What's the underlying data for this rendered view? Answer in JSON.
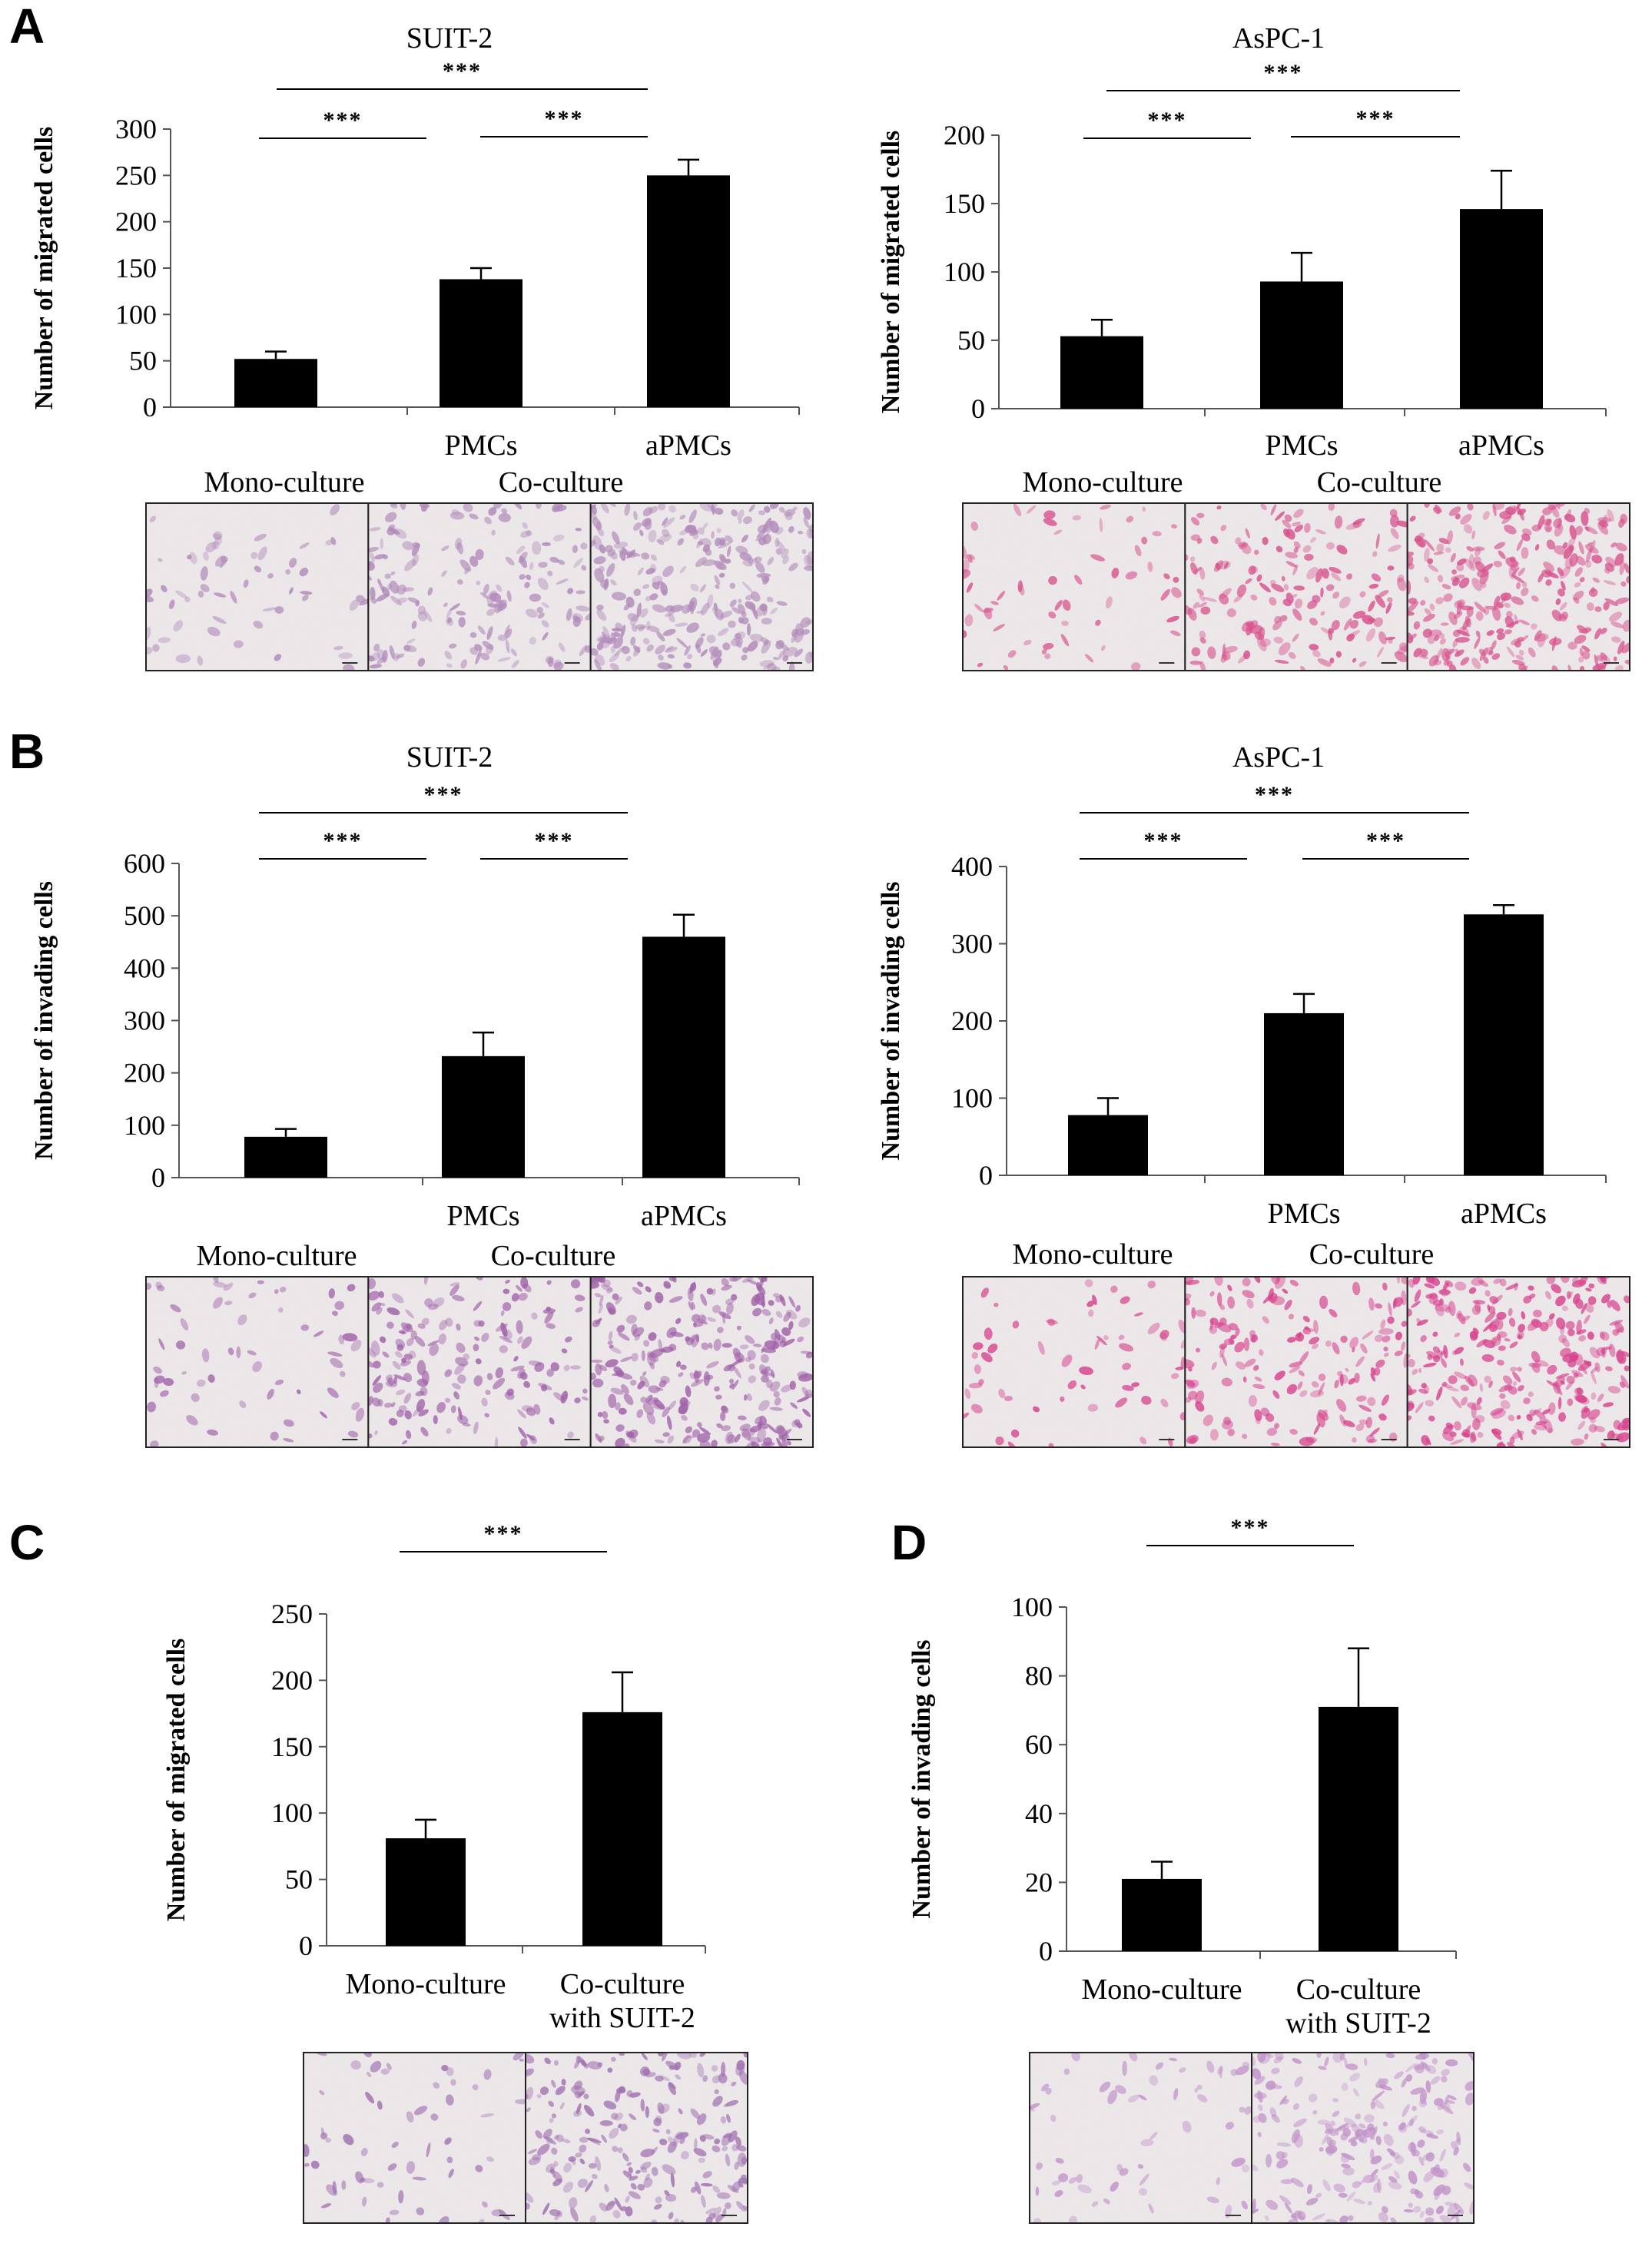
{
  "chart_data": [
    {
      "panel": "A",
      "type": "bar",
      "title": "SUIT-2",
      "ylabel": "Number of migrated cells",
      "ylim": [
        0,
        300
      ],
      "yticks": [
        0,
        50,
        100,
        150,
        200,
        250,
        300
      ],
      "categories": [
        "",
        "PMCs",
        "aPMCs"
      ],
      "values": [
        52,
        138,
        250
      ],
      "errors": [
        8,
        12,
        17
      ],
      "group_labels": [
        "Mono-culture",
        "Co-culture"
      ],
      "significance": [
        "***",
        "***",
        "***"
      ],
      "micrograph_stain": "#b088b8"
    },
    {
      "panel": "A",
      "type": "bar",
      "title": "AsPC-1",
      "ylabel": "Number of migrated cells",
      "ylim": [
        0,
        200
      ],
      "yticks": [
        0,
        50,
        100,
        150,
        200
      ],
      "categories": [
        "",
        "PMCs",
        "aPMCs"
      ],
      "values": [
        53,
        93,
        146
      ],
      "errors": [
        12,
        21,
        28
      ],
      "group_labels": [
        "Mono-culture",
        "Co-culture"
      ],
      "significance": [
        "***",
        "***",
        "***"
      ],
      "micrograph_stain": "#d8508c"
    },
    {
      "panel": "B",
      "type": "bar",
      "title": "SUIT-2",
      "ylabel": "Number of invading cells",
      "ylim": [
        0,
        600
      ],
      "yticks": [
        0,
        100,
        200,
        300,
        400,
        500,
        600
      ],
      "categories": [
        "",
        "PMCs",
        "aPMCs"
      ],
      "values": [
        78,
        232,
        460
      ],
      "errors": [
        15,
        45,
        42
      ],
      "group_labels": [
        "Mono-culture",
        "Co-culture"
      ],
      "significance": [
        "***",
        "***",
        "***"
      ],
      "micrograph_stain": "#a060a8"
    },
    {
      "panel": "B",
      "type": "bar",
      "title": "AsPC-1",
      "ylabel": "Number of invading cells",
      "ylim": [
        0,
        400
      ],
      "yticks": [
        0,
        100,
        200,
        300,
        400
      ],
      "categories": [
        "",
        "PMCs",
        "aPMCs"
      ],
      "values": [
        78,
        210,
        338
      ],
      "errors": [
        22,
        25,
        12
      ],
      "group_labels": [
        "Mono-culture",
        "Co-culture"
      ],
      "significance": [
        "***",
        "***",
        "***"
      ],
      "micrograph_stain": "#d8408c"
    },
    {
      "panel": "C",
      "type": "bar",
      "title": "",
      "ylabel": "Number of migrated cells",
      "ylim": [
        0,
        250
      ],
      "yticks": [
        0,
        50,
        100,
        150,
        200,
        250
      ],
      "categories": [
        "Mono-culture",
        "Co-culture\nwith SUIT-2"
      ],
      "values": [
        81,
        176
      ],
      "errors": [
        14,
        30
      ],
      "significance": [
        "***"
      ],
      "micrograph_stain": "#a070b0"
    },
    {
      "panel": "D",
      "type": "bar",
      "title": "",
      "ylabel": "Number of invading cells",
      "ylim": [
        0,
        100
      ],
      "yticks": [
        0,
        20,
        40,
        60,
        80,
        100
      ],
      "categories": [
        "Mono-culture",
        "Co-culture\nwith SUIT-2"
      ],
      "values": [
        21,
        71
      ],
      "errors": [
        5,
        17
      ],
      "significance": [
        "***"
      ],
      "micrograph_stain": "#c090c8"
    }
  ]
}
